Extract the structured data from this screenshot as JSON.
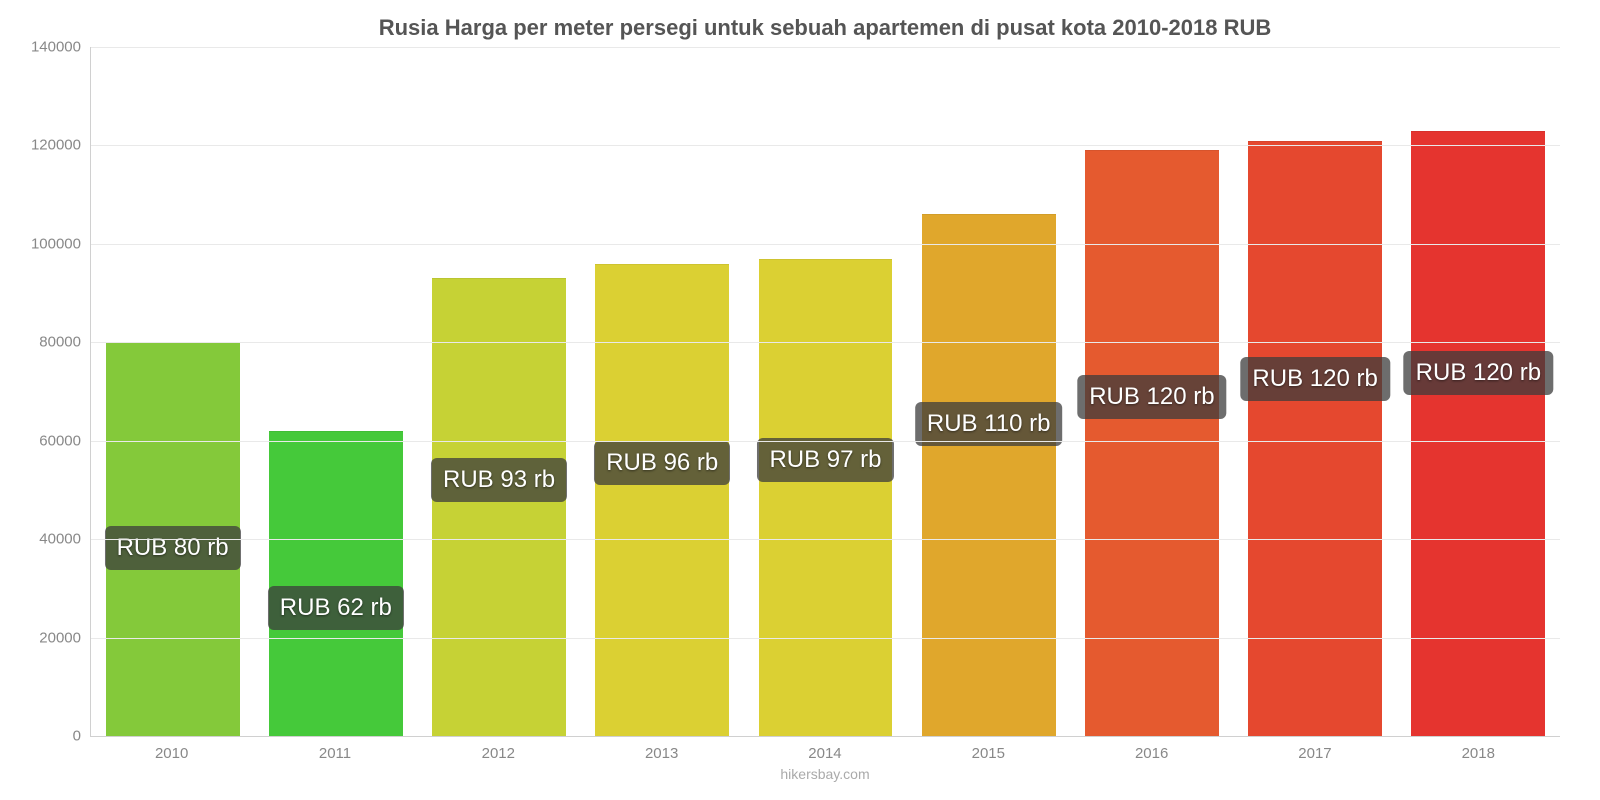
{
  "chart": {
    "type": "bar",
    "title": "Rusia Harga per meter persegi untuk sebuah apartemen di pusat kota 2010-2018 RUB",
    "title_fontsize": 22,
    "title_color": "#555555",
    "credit": "hikersbay.com",
    "credit_color": "#aaaaaa",
    "credit_fontsize": 14,
    "background_color": "#ffffff",
    "grid_color": "#e9e9e9",
    "axis_color": "#d0d0d0",
    "tick_label_color": "#888888",
    "tick_label_fontsize": 15,
    "bar_label_fontsize": 24,
    "bar_label_bg": "rgba(60,60,60,0.75)",
    "bar_label_color": "#ffffff",
    "bar_width": 0.82,
    "ylim": [
      0,
      140000
    ],
    "ytick_step": 20000,
    "yticks": [
      0,
      20000,
      40000,
      60000,
      80000,
      100000,
      120000,
      140000
    ],
    "categories": [
      "2010",
      "2011",
      "2012",
      "2013",
      "2014",
      "2015",
      "2016",
      "2017",
      "2018"
    ],
    "values": [
      80000,
      62000,
      93000,
      96000,
      97000,
      106000,
      119000,
      121000,
      123000
    ],
    "bar_labels": [
      "RUB 80 rb",
      "RUB 62 rb",
      "RUB 93 rb",
      "RUB 96 rb",
      "RUB 97 rb",
      "RUB 110 rb",
      "RUB 120 rb",
      "RUB 120 rb",
      "RUB 120 rb"
    ],
    "bar_colors": [
      "#84c93a",
      "#45c93a",
      "#c6d235",
      "#dbd033",
      "#dbd033",
      "#e0a72c",
      "#e55a2f",
      "#e5482f",
      "#e5342f"
    ]
  }
}
